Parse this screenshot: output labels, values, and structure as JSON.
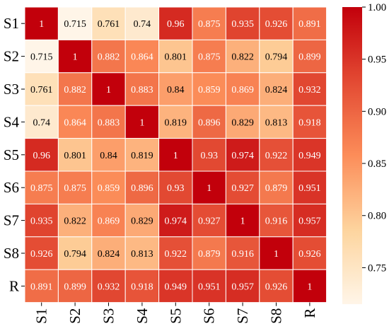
{
  "chart_data": {
    "type": "heatmap",
    "title": "",
    "xlabel": "",
    "ylabel": "",
    "x_categories": [
      "S1",
      "S2",
      "S3",
      "S4",
      "S5",
      "S6",
      "S7",
      "S8",
      "R"
    ],
    "y_categories": [
      "S1",
      "S2",
      "S3",
      "S4",
      "S5",
      "S6",
      "S7",
      "S8",
      "R"
    ],
    "values": [
      [
        1,
        0.715,
        0.761,
        0.74,
        0.96,
        0.875,
        0.935,
        0.926,
        0.891
      ],
      [
        0.715,
        1,
        0.882,
        0.864,
        0.801,
        0.875,
        0.822,
        0.794,
        0.899
      ],
      [
        0.761,
        0.882,
        1,
        0.883,
        0.84,
        0.859,
        0.869,
        0.824,
        0.932
      ],
      [
        0.74,
        0.864,
        0.883,
        1,
        0.819,
        0.896,
        0.829,
        0.813,
        0.918
      ],
      [
        0.96,
        0.801,
        0.84,
        0.819,
        1,
        0.93,
        0.974,
        0.922,
        0.949
      ],
      [
        0.875,
        0.875,
        0.859,
        0.896,
        0.93,
        1,
        0.927,
        0.879,
        0.951
      ],
      [
        0.935,
        0.822,
        0.869,
        0.829,
        0.974,
        0.927,
        1,
        0.916,
        0.957
      ],
      [
        0.926,
        0.794,
        0.824,
        0.813,
        0.922,
        0.879,
        0.916,
        1,
        0.926
      ],
      [
        0.891,
        0.899,
        0.932,
        0.918,
        0.949,
        0.951,
        0.957,
        0.926,
        1
      ]
    ],
    "value_labels": [
      [
        "1",
        "0.715",
        "0.761",
        "0.74",
        "0.96",
        "0.875",
        "0.935",
        "0.926",
        "0.891"
      ],
      [
        "0.715",
        "1",
        "0.882",
        "0.864",
        "0.801",
        "0.875",
        "0.822",
        "0.794",
        "0.899"
      ],
      [
        "0.761",
        "0.882",
        "1",
        "0.883",
        "0.84",
        "0.859",
        "0.869",
        "0.824",
        "0.932"
      ],
      [
        "0.74",
        "0.864",
        "0.883",
        "1",
        "0.819",
        "0.896",
        "0.829",
        "0.813",
        "0.918"
      ],
      [
        "0.96",
        "0.801",
        "0.84",
        "0.819",
        "1",
        "0.93",
        "0.974",
        "0.922",
        "0.949"
      ],
      [
        "0.875",
        "0.875",
        "0.859",
        "0.896",
        "0.93",
        "1",
        "0.927",
        "0.879",
        "0.951"
      ],
      [
        "0.935",
        "0.822",
        "0.869",
        "0.829",
        "0.974",
        "0.927",
        "1",
        "0.916",
        "0.957"
      ],
      [
        "0.926",
        "0.794",
        "0.824",
        "0.813",
        "0.922",
        "0.879",
        "0.916",
        "1",
        "0.926"
      ],
      [
        "0.891",
        "0.899",
        "0.932",
        "0.918",
        "0.949",
        "0.951",
        "0.957",
        "0.926",
        "1"
      ]
    ],
    "vmin": 0.715,
    "vmax": 1.0,
    "colormap": "OrRd-like",
    "colormap_stops": [
      "#fff5e8",
      "#fdd49e",
      "#fc8d59",
      "#e34a33",
      "#c2000b"
    ],
    "grid": "white",
    "colorbar": {
      "position": "right",
      "ticks": [
        1.0,
        0.95,
        0.9,
        0.85,
        0.8,
        0.75
      ],
      "tick_labels": [
        "1.00",
        "0.95",
        "0.90",
        "0.85",
        "0.80",
        "0.75"
      ]
    }
  }
}
